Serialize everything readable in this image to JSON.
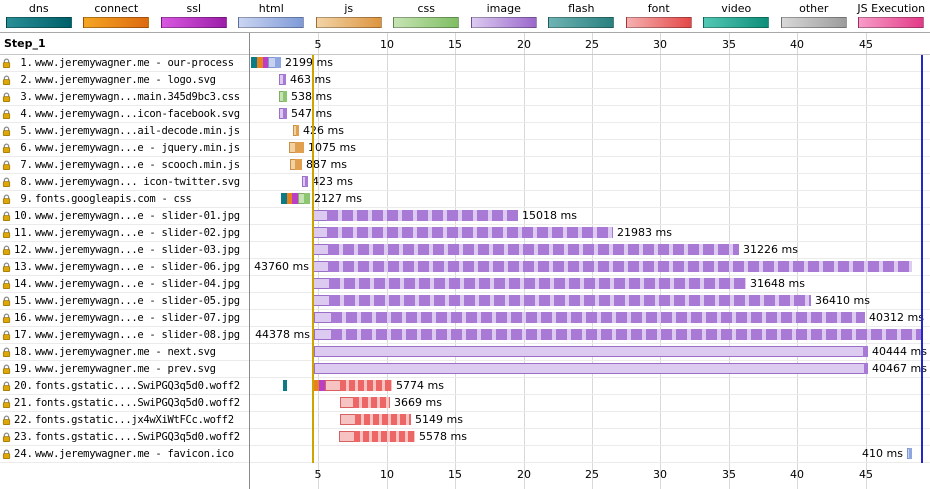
{
  "legend": {
    "items": [
      {
        "label": "dns",
        "light": "#2a8f97",
        "dark": "#006069"
      },
      {
        "label": "connect",
        "light": "#f5a623",
        "dark": "#dd6a10"
      },
      {
        "label": "ssl",
        "light": "#d857e0",
        "dark": "#9c1ea8"
      },
      {
        "label": "html",
        "light": "#cad5f2",
        "dark": "#7e9ad8"
      },
      {
        "label": "js",
        "light": "#f2d4a6",
        "dark": "#dd9540"
      },
      {
        "label": "css",
        "light": "#c6e4b4",
        "dark": "#7fbe62"
      },
      {
        "label": "image",
        "light": "#dccbf0",
        "dark": "#9a68cc"
      },
      {
        "label": "flash",
        "light": "#6fb3b3",
        "dark": "#2a8080"
      },
      {
        "label": "font",
        "light": "#f6b0b0",
        "dark": "#e44848"
      },
      {
        "label": "video",
        "light": "#52c8b4",
        "dark": "#0e8e7a"
      },
      {
        "label": "other",
        "light": "#d8d8d8",
        "dark": "#9c9c9c"
      },
      {
        "label": "JS Execution",
        "light": "#f79cc8",
        "dark": "#e23b87"
      }
    ]
  },
  "colors": {
    "setup": {
      "dns": "#0d7b85",
      "connect": "#e8821e",
      "ssl": "#bb3fc4"
    },
    "mime": {
      "html": {
        "light": "#c6d2f0",
        "dark": "#8fa6e0",
        "edge": "#8097cc"
      },
      "css": {
        "light": "#c8e2b8",
        "dark": "#8cc670",
        "edge": "#7fae63"
      },
      "js": {
        "light": "#f3d2a2",
        "dark": "#e0a050",
        "edge": "#c89048"
      },
      "image": {
        "light": "#dccaf0",
        "dark": "#a87ad6",
        "edge": "#9a6fc8"
      },
      "font": {
        "light": "#f7c2c2",
        "dark": "#ec6666",
        "edge": "#d86060"
      }
    },
    "markers": {
      "start_render": "#cfa400",
      "doc_complete": "#2525cc"
    }
  },
  "chart_data": {
    "type": "waterfall",
    "title": "Step_1",
    "time_unit": "s",
    "axis_ticks": [
      5,
      10,
      15,
      20,
      25,
      30,
      35,
      40,
      45
    ],
    "markers": [
      {
        "name": "start-render",
        "t": 4.62,
        "color_key": "start_render"
      },
      {
        "name": "document-complete",
        "t": 49.1,
        "color_key": "doc_complete"
      }
    ],
    "requests": [
      {
        "num": "1.",
        "name": "www.jeremywagner.me - our-process",
        "mime": "html",
        "duration_label": "2199 ms",
        "label_side": "right",
        "segments": [
          {
            "kind": "dns",
            "s": 0.07,
            "e": 0.5
          },
          {
            "kind": "connect",
            "s": 0.5,
            "e": 0.92
          },
          {
            "kind": "ssl",
            "s": 0.92,
            "e": 1.3
          }
        ],
        "body": {
          "s": 1.3,
          "e": 2.27,
          "dark_from": 1.82,
          "textured": false
        }
      },
      {
        "num": "2.",
        "name": "www.jeremywagner.me - logo.svg",
        "mime": "image",
        "duration_label": "463 ms",
        "label_side": "right",
        "segments": [],
        "body": {
          "s": 2.15,
          "e": 2.61,
          "dark_from": 2.4,
          "textured": false
        }
      },
      {
        "num": "3.",
        "name": "www.jeremywagn...main.345d9bc3.css",
        "mime": "css",
        "duration_label": "538 ms",
        "label_side": "right",
        "segments": [],
        "body": {
          "s": 2.15,
          "e": 2.69,
          "dark_from": 2.44,
          "textured": false
        }
      },
      {
        "num": "4.",
        "name": "www.jeremywagn...icon-facebook.svg",
        "mime": "image",
        "duration_label": "547 ms",
        "label_side": "right",
        "segments": [],
        "body": {
          "s": 2.15,
          "e": 2.7,
          "dark_from": 2.44,
          "textured": false
        }
      },
      {
        "num": "5.",
        "name": "www.jeremywagn...ail-decode.min.js",
        "mime": "js",
        "duration_label": "426 ms",
        "label_side": "right",
        "segments": [],
        "body": {
          "s": 3.15,
          "e": 3.58,
          "dark_from": 3.37,
          "textured": false
        }
      },
      {
        "num": "6.",
        "name": "www.jeremywagn...e - jquery.min.js",
        "mime": "js",
        "duration_label": "1075 ms",
        "label_side": "right",
        "segments": [],
        "body": {
          "s": 2.85,
          "e": 3.93,
          "dark_from": 3.3,
          "textured": false
        }
      },
      {
        "num": "7.",
        "name": "www.jeremywagn...e - scooch.min.js",
        "mime": "js",
        "duration_label": "887 ms",
        "label_side": "right",
        "segments": [],
        "body": {
          "s": 2.9,
          "e": 3.79,
          "dark_from": 3.3,
          "textured": false
        }
      },
      {
        "num": "8.",
        "name": "www.jeremywagn... icon-twitter.svg",
        "mime": "image",
        "duration_label": "423 ms",
        "label_side": "right",
        "segments": [],
        "body": {
          "s": 3.8,
          "e": 4.22,
          "dark_from": 4.0,
          "textured": false
        }
      },
      {
        "num": "9.",
        "name": "fonts.googleapis.com - css",
        "mime": "css",
        "duration_label": "2127 ms",
        "label_side": "right",
        "segments": [
          {
            "kind": "dns",
            "s": 2.27,
            "e": 2.7
          },
          {
            "kind": "connect",
            "s": 2.7,
            "e": 3.1
          },
          {
            "kind": "ssl",
            "s": 3.1,
            "e": 3.5
          }
        ],
        "body": {
          "s": 3.5,
          "e": 4.4,
          "dark_from": 3.95,
          "textured": false
        }
      },
      {
        "num": "10.",
        "name": "www.jeremywagn...e - slider-01.jpg",
        "mime": "image",
        "duration_label": "15018 ms",
        "label_side": "right",
        "segments": [],
        "body": {
          "s": 4.55,
          "e": 19.57,
          "dark_from": 5.6,
          "textured": true
        }
      },
      {
        "num": "11.",
        "name": "www.jeremywagn...e - slider-02.jpg",
        "mime": "image",
        "duration_label": "21983 ms",
        "label_side": "right",
        "segments": [],
        "body": {
          "s": 4.55,
          "e": 26.53,
          "dark_from": 5.6,
          "textured": true
        }
      },
      {
        "num": "12.",
        "name": "www.jeremywagn...e - slider-03.jpg",
        "mime": "image",
        "duration_label": "31226 ms",
        "label_side": "right",
        "segments": [],
        "body": {
          "s": 4.55,
          "e": 35.78,
          "dark_from": 5.7,
          "textured": true
        }
      },
      {
        "num": "13.",
        "name": "www.jeremywagn...e - slider-06.jpg",
        "mime": "image",
        "duration_label": "43760 ms",
        "label_side": "left",
        "segments": [],
        "body": {
          "s": 4.6,
          "e": 48.36,
          "dark_from": 5.7,
          "textured": true
        }
      },
      {
        "num": "14.",
        "name": "www.jeremywagn...e - slider-04.jpg",
        "mime": "image",
        "duration_label": "31648 ms",
        "label_side": "right",
        "segments": [],
        "body": {
          "s": 4.6,
          "e": 36.25,
          "dark_from": 5.8,
          "textured": true
        }
      },
      {
        "num": "15.",
        "name": "www.jeremywagn...e - slider-05.jpg",
        "mime": "image",
        "duration_label": "36410 ms",
        "label_side": "right",
        "segments": [],
        "body": {
          "s": 4.6,
          "e": 41.01,
          "dark_from": 5.8,
          "textured": true
        }
      },
      {
        "num": "16.",
        "name": "www.jeremywagn...e - slider-07.jpg",
        "mime": "image",
        "duration_label": "40312 ms",
        "label_side": "right",
        "segments": [],
        "body": {
          "s": 4.65,
          "e": 44.96,
          "dark_from": 5.9,
          "textured": true
        }
      },
      {
        "num": "17.",
        "name": "www.jeremywagn...e - slider-08.jpg",
        "mime": "image",
        "duration_label": "44378 ms",
        "label_side": "left",
        "segments": [],
        "body": {
          "s": 4.65,
          "e": 49.03,
          "dark_from": 5.9,
          "textured": true
        }
      },
      {
        "num": "18.",
        "name": "www.jeremywagner.me - next.svg",
        "mime": "image",
        "duration_label": "40444 ms",
        "label_side": "right",
        "segments": [],
        "body": {
          "s": 4.7,
          "e": 45.14,
          "dark_from": 44.8,
          "textured": false
        }
      },
      {
        "num": "19.",
        "name": "www.jeremywagner.me - prev.svg",
        "mime": "image",
        "duration_label": "40467 ms",
        "label_side": "right",
        "segments": [],
        "body": {
          "s": 4.7,
          "e": 45.17,
          "dark_from": 44.85,
          "textured": false
        }
      },
      {
        "num": "20.",
        "name": "fonts.gstatic....SwiPGQ3q5d0.woff2",
        "mime": "font",
        "duration_label": "5774 ms",
        "label_side": "right",
        "segments": [
          {
            "kind": "dns",
            "s": 2.4,
            "e": 2.72
          },
          {
            "kind": "connect",
            "s": 4.62,
            "e": 5.08
          },
          {
            "kind": "ssl",
            "s": 5.08,
            "e": 5.45
          }
        ],
        "body": {
          "s": 5.45,
          "e": 10.37,
          "dark_from": 6.6,
          "textured": true
        }
      },
      {
        "num": "21.",
        "name": "fonts.gstatic....SwiPGQ3q5d0.woff2",
        "mime": "font",
        "duration_label": "3669 ms",
        "label_side": "right",
        "segments": [],
        "body": {
          "s": 6.6,
          "e": 10.27,
          "dark_from": 7.5,
          "textured": true
        }
      },
      {
        "num": "22.",
        "name": "fonts.gstatic...jx4wXiWtFCc.woff2",
        "mime": "font",
        "duration_label": "5149 ms",
        "label_side": "right",
        "segments": [],
        "body": {
          "s": 6.6,
          "e": 11.75,
          "dark_from": 7.7,
          "textured": true
        }
      },
      {
        "num": "23.",
        "name": "fonts.gstatic....SwiPGQ3q5d0.woff2",
        "mime": "font",
        "duration_label": "5578 ms",
        "label_side": "right",
        "segments": [],
        "body": {
          "s": 6.5,
          "e": 12.08,
          "dark_from": 7.6,
          "textured": true
        }
      },
      {
        "num": "24.",
        "name": "www.jeremywagner.me - favicon.ico",
        "mime": "html",
        "duration_label": "410 ms",
        "label_side": "left",
        "segments": [],
        "body": {
          "s": 48.0,
          "e": 48.41,
          "dark_from": 48.18,
          "textured": false
        }
      }
    ]
  }
}
